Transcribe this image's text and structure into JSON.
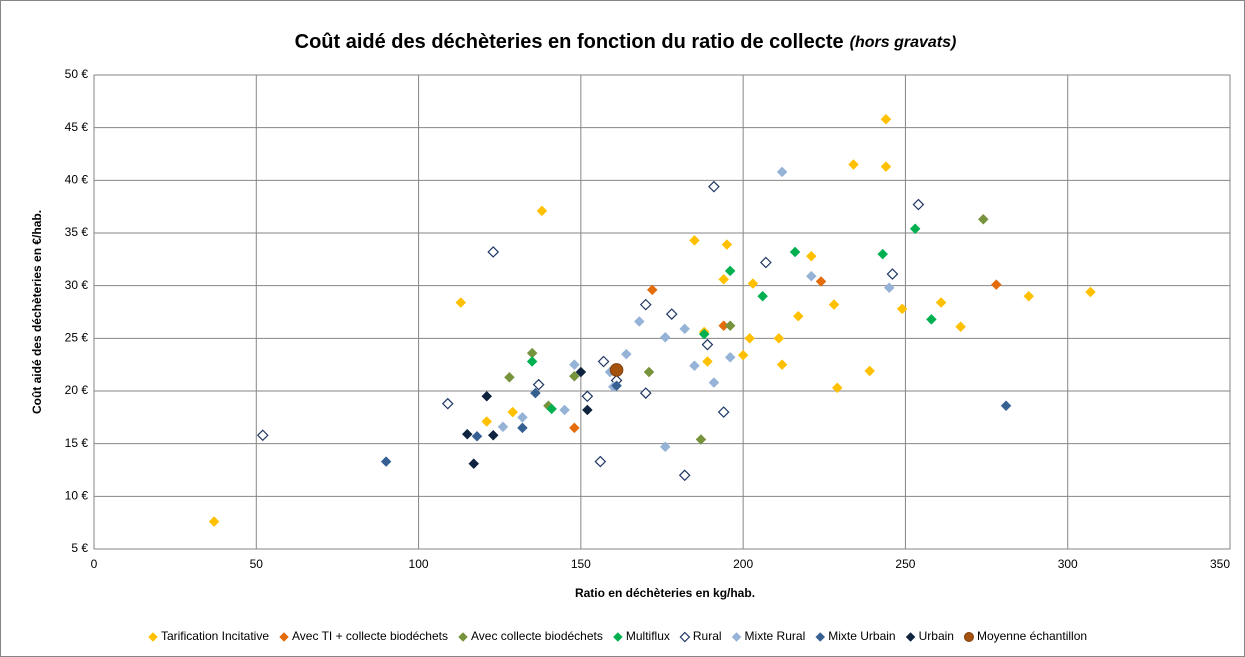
{
  "chart_data": {
    "type": "scatter",
    "title": "Coût aidé des déchèteries en fonction du ratio de collecte",
    "title_note": "(hors gravats)",
    "x_label": "Ratio en déchèteries en kg/hab.",
    "y_label": "Coût aidé des déchèteries en €/hab.",
    "xlim": [
      0,
      350
    ],
    "xticks": [
      0,
      50,
      100,
      150,
      200,
      250,
      300,
      350
    ],
    "ylim": [
      5,
      50
    ],
    "yticks": [
      {
        "value": 5,
        "label": "5 €"
      },
      {
        "value": 10,
        "label": "10 €"
      },
      {
        "value": 15,
        "label": "15 €"
      },
      {
        "value": 20,
        "label": "20 €"
      },
      {
        "value": 25,
        "label": "25 €"
      },
      {
        "value": 30,
        "label": "30 €"
      },
      {
        "value": 35,
        "label": "35 €"
      },
      {
        "value": 40,
        "label": "40 €"
      },
      {
        "value": 45,
        "label": "45 €"
      },
      {
        "value": 50,
        "label": "50 €"
      }
    ],
    "grid": true,
    "legend": "bottom",
    "series": [
      {
        "name": "Tarification Incitative",
        "color": "#FFC000",
        "marker": "diamond",
        "x": [
          37,
          113,
          138,
          121,
          129,
          185,
          195,
          194,
          188,
          189,
          200,
          202,
          203,
          211,
          212,
          217,
          221,
          228,
          229,
          234,
          239,
          244,
          244,
          249,
          261,
          267,
          288,
          307
        ],
        "values": [
          7.6,
          28.4,
          37.1,
          17.1,
          18.0,
          34.3,
          33.9,
          30.6,
          25.6,
          22.8,
          23.4,
          25.0,
          30.2,
          25.0,
          22.5,
          27.1,
          32.8,
          28.2,
          20.3,
          41.5,
          21.9,
          45.8,
          41.3,
          27.8,
          28.4,
          26.1,
          29.0,
          29.4
        ]
      },
      {
        "name": "Avec TI + collecte biodéchets",
        "color": "#E46C0A",
        "marker": "diamond",
        "x": [
          148,
          172,
          194,
          224,
          278
        ],
        "values": [
          16.5,
          29.6,
          26.2,
          30.4,
          30.1
        ]
      },
      {
        "name": "Avec collecte biodéchets",
        "color": "#77933C",
        "marker": "diamond",
        "x": [
          128,
          135,
          140,
          148,
          171,
          187,
          196,
          274
        ],
        "values": [
          21.3,
          23.6,
          18.6,
          21.4,
          21.8,
          15.4,
          26.2,
          36.3
        ]
      },
      {
        "name": "Multiflux",
        "color": "#00B050",
        "marker": "diamond",
        "x": [
          135,
          141,
          188,
          196,
          206,
          216,
          243,
          253,
          258
        ],
        "values": [
          22.8,
          18.3,
          25.4,
          31.4,
          29.0,
          33.2,
          33.0,
          35.4,
          26.8
        ]
      },
      {
        "name": "Rural",
        "color": "#1F3864",
        "marker": "diamond-open",
        "x": [
          52,
          109,
          123,
          137,
          152,
          157,
          161,
          170,
          170,
          178,
          189,
          191,
          194,
          207,
          246,
          254,
          182,
          156
        ],
        "values": [
          15.8,
          18.8,
          33.2,
          20.6,
          19.5,
          22.8,
          21.0,
          28.2,
          19.8,
          27.3,
          24.4,
          39.4,
          18.0,
          32.2,
          31.1,
          37.7,
          12.0,
          13.3
        ]
      },
      {
        "name": "Mixte Rural",
        "color": "#95B3D7",
        "marker": "diamond",
        "x": [
          126,
          132,
          145,
          148,
          159,
          160,
          164,
          168,
          176,
          176,
          182,
          185,
          191,
          196,
          212,
          221,
          245
        ],
        "values": [
          16.6,
          17.5,
          18.2,
          22.5,
          21.8,
          20.4,
          23.5,
          26.6,
          25.1,
          14.7,
          25.9,
          22.4,
          20.8,
          23.2,
          40.8,
          30.9,
          29.8
        ]
      },
      {
        "name": "Mixte Urbain",
        "color": "#366092",
        "marker": "diamond",
        "x": [
          90,
          118,
          132,
          136,
          161,
          281
        ],
        "values": [
          13.3,
          15.7,
          16.5,
          19.8,
          20.5,
          18.6
        ]
      },
      {
        "name": "Urbain",
        "color": "#0F243E",
        "marker": "diamond",
        "x": [
          115,
          117,
          121,
          123,
          150,
          152
        ],
        "values": [
          15.9,
          13.1,
          19.5,
          15.8,
          21.8,
          18.2
        ]
      },
      {
        "name": "Moyenne échantillon",
        "color": "#A5520F",
        "marker": "circle",
        "x": [
          161
        ],
        "values": [
          22.0
        ]
      }
    ]
  }
}
